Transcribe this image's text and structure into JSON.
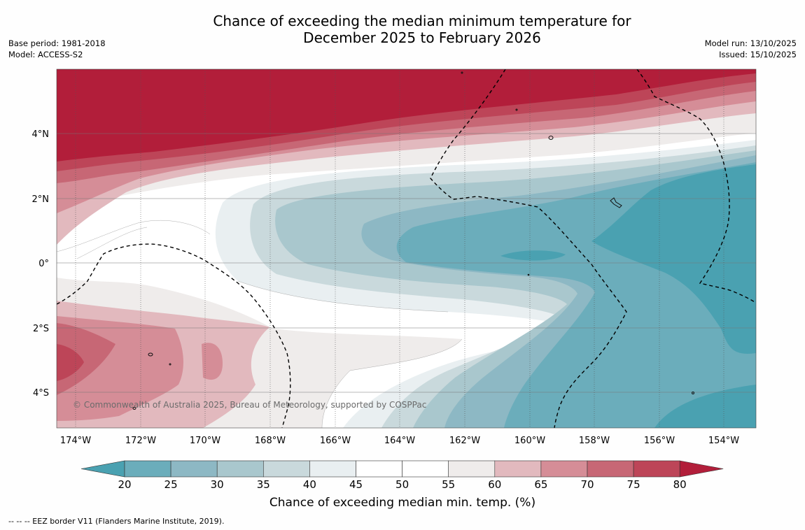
{
  "title": {
    "line1": "Chance of exceeding the median minimum temperature for",
    "line2": "December 2025 to February 2026"
  },
  "meta_left": {
    "base_period": "Base period: 1981-2018",
    "model": "Model: ACCESS-S2"
  },
  "meta_right": {
    "model_run": "Model run: 13/10/2025",
    "issued": "Issued: 15/10/2025"
  },
  "map": {
    "lat_labels": [
      "4°N",
      "2°N",
      "0°",
      "2°S",
      "4°S"
    ],
    "lon_labels": [
      "174°W",
      "172°W",
      "170°W",
      "168°W",
      "166°W",
      "164°W",
      "162°W",
      "160°W",
      "158°W",
      "156°W",
      "154°W"
    ],
    "credit": "© Commonwealth of Australia 2025, Bureau of Meteorology, supported by COSPPac"
  },
  "colorbar": {
    "ticks": [
      "20",
      "25",
      "30",
      "35",
      "40",
      "45",
      "50",
      "55",
      "60",
      "65",
      "70",
      "75",
      "80"
    ],
    "colors": [
      "#4aa1b1",
      "#6badbb",
      "#8db8c4",
      "#a9c7cd",
      "#c9d9dc",
      "#e9eff1",
      "#ffffff",
      "#ffffff",
      "#efeceb",
      "#e2b9be",
      "#d58d97",
      "#c76775",
      "#bd4558",
      "#b21e3a"
    ],
    "label": "Chance of exceeding median min. temp. (%)"
  },
  "footnote": "--  --  -- EEZ border V11 (Flanders Marine Institute, 2019)."
}
